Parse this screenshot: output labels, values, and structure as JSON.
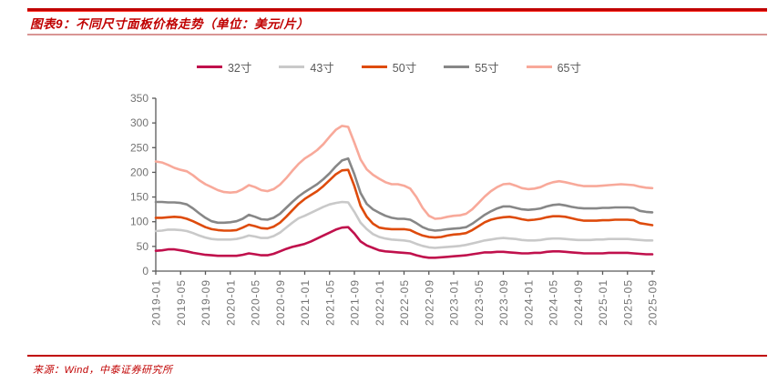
{
  "header": {
    "title": "图表9：不同尺寸面板价格走势（单位：美元/片）"
  },
  "footer": {
    "source": "来源：Wind，中泰证券研究所"
  },
  "colors": {
    "accent_red": "#c00000",
    "pale_rule": "#d99694",
    "axis_line": "#595959",
    "axis_text": "#737373",
    "legend_text": "#595959"
  },
  "chart_data": {
    "type": "line",
    "title": "不同尺寸面板价格走势",
    "unit": "美元/片",
    "x_frequency": "monthly",
    "x_start": "2019-01",
    "x_end": "2025-09",
    "tick_labels": [
      "2019-01",
      "2019-05",
      "2019-09",
      "2020-01",
      "2020-05",
      "2020-09",
      "2021-01",
      "2021-05",
      "2021-09",
      "2022-01",
      "2022-05",
      "2022-09",
      "2023-01",
      "2023-05",
      "2023-09",
      "2024-01",
      "2024-05",
      "2024-09",
      "2025-01",
      "2025-05",
      "2025-09"
    ],
    "ylim": [
      0,
      350
    ],
    "y_ticks": [
      0,
      50,
      100,
      150,
      200,
      250,
      300,
      350
    ],
    "grid": false,
    "legend_position": "top",
    "series": [
      {
        "name": "32寸",
        "color": "#c0104c",
        "values": [
          41,
          42,
          44,
          44,
          42,
          40,
          37,
          35,
          33,
          32,
          31,
          31,
          31,
          31,
          33,
          36,
          34,
          32,
          32,
          35,
          40,
          45,
          49,
          52,
          55,
          60,
          66,
          72,
          78,
          84,
          88,
          89,
          76,
          60,
          52,
          47,
          42,
          40,
          39,
          38,
          37,
          36,
          32,
          29,
          27,
          27,
          28,
          29,
          30,
          31,
          32,
          34,
          36,
          38,
          38,
          39,
          39,
          38,
          37,
          36,
          36,
          37,
          37,
          39,
          40,
          40,
          39,
          38,
          37,
          36,
          36,
          36,
          36,
          37,
          37,
          37,
          37,
          36,
          35,
          34,
          34
        ]
      },
      {
        "name": "43寸",
        "color": "#c9c9c9",
        "values": [
          81,
          82,
          84,
          84,
          83,
          81,
          77,
          72,
          68,
          65,
          64,
          64,
          64,
          65,
          68,
          72,
          70,
          67,
          67,
          71,
          78,
          88,
          98,
          107,
          112,
          118,
          124,
          130,
          135,
          138,
          140,
          139,
          120,
          98,
          85,
          75,
          69,
          66,
          64,
          63,
          62,
          60,
          55,
          51,
          48,
          47,
          48,
          49,
          50,
          51,
          53,
          56,
          59,
          62,
          64,
          66,
          67,
          66,
          65,
          63,
          62,
          62,
          63,
          65,
          66,
          66,
          65,
          64,
          63,
          63,
          63,
          64,
          64,
          65,
          65,
          65,
          65,
          64,
          63,
          62,
          62
        ]
      },
      {
        "name": "50寸",
        "color": "#de4b0c",
        "values": [
          108,
          108,
          109,
          110,
          109,
          106,
          101,
          95,
          89,
          85,
          83,
          82,
          82,
          83,
          88,
          94,
          91,
          87,
          86,
          90,
          98,
          110,
          123,
          136,
          146,
          154,
          162,
          172,
          184,
          196,
          204,
          205,
          172,
          132,
          110,
          96,
          88,
          86,
          85,
          85,
          85,
          83,
          77,
          72,
          69,
          68,
          69,
          72,
          74,
          75,
          77,
          83,
          91,
          99,
          104,
          107,
          109,
          110,
          108,
          105,
          103,
          104,
          106,
          109,
          111,
          111,
          110,
          107,
          104,
          102,
          102,
          102,
          103,
          103,
          104,
          104,
          104,
          103,
          97,
          95,
          93
        ]
      },
      {
        "name": "55寸",
        "color": "#878787",
        "values": [
          140,
          140,
          139,
          139,
          138,
          135,
          127,
          117,
          108,
          101,
          98,
          98,
          99,
          101,
          106,
          114,
          110,
          105,
          104,
          108,
          116,
          128,
          140,
          151,
          160,
          168,
          176,
          186,
          198,
          212,
          224,
          228,
          196,
          158,
          136,
          125,
          118,
          112,
          108,
          106,
          106,
          104,
          97,
          89,
          84,
          82,
          83,
          85,
          86,
          87,
          89,
          96,
          105,
          114,
          121,
          127,
          131,
          131,
          128,
          125,
          124,
          125,
          127,
          131,
          134,
          135,
          133,
          130,
          128,
          127,
          127,
          127,
          128,
          128,
          129,
          129,
          129,
          128,
          122,
          120,
          119
        ]
      },
      {
        "name": "65寸",
        "color": "#f8a99a",
        "values": [
          222,
          220,
          215,
          209,
          205,
          202,
          194,
          184,
          176,
          170,
          164,
          160,
          159,
          160,
          166,
          174,
          170,
          164,
          162,
          166,
          175,
          188,
          203,
          217,
          228,
          236,
          245,
          257,
          272,
          286,
          294,
          292,
          260,
          226,
          206,
          195,
          187,
          180,
          176,
          176,
          173,
          167,
          150,
          128,
          112,
          106,
          107,
          110,
          112,
          113,
          116,
          125,
          138,
          151,
          162,
          170,
          176,
          177,
          173,
          168,
          166,
          167,
          170,
          176,
          180,
          182,
          180,
          177,
          174,
          172,
          172,
          172,
          173,
          174,
          175,
          176,
          175,
          174,
          171,
          169,
          168
        ]
      }
    ]
  }
}
